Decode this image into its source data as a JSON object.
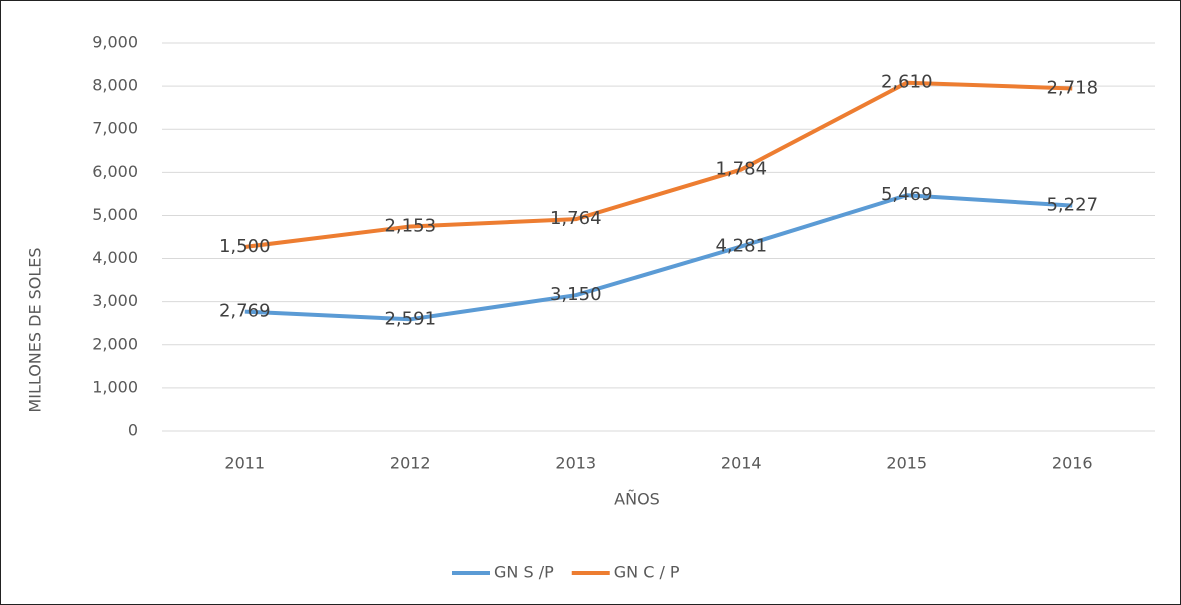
{
  "chart_data": {
    "type": "line",
    "stacked": true,
    "x_label": "AÑOS",
    "y_label": "MILLONES DE SOLES",
    "categories": [
      "2011",
      "2012",
      "2013",
      "2014",
      "2015",
      "2016"
    ],
    "series": [
      {
        "name": "GN S /P",
        "color": "#5b9bd5",
        "values": [
          2769,
          2591,
          3150,
          4281,
          5469,
          5227
        ],
        "value_labels": [
          "2,769",
          "2,591",
          "3,150",
          "4,281",
          "5,469",
          "5,227"
        ]
      },
      {
        "name": "GN C / P",
        "color": "#ed7d31",
        "values": [
          1500,
          2153,
          1764,
          1784,
          2610,
          2718
        ],
        "value_labels": [
          "1,500",
          "2,153",
          "1,764",
          "1,784",
          "2,610",
          "2,718"
        ]
      }
    ],
    "ylim": [
      0,
      9000
    ],
    "yticks": [
      0,
      {
        "value": 1000,
        "label": "1,000"
      },
      {
        "value": 2000,
        "label": "2,000"
      },
      {
        "value": 3000,
        "label": "3,000"
      },
      {
        "value": 4000,
        "label": "4,000"
      },
      {
        "value": 5000,
        "label": "5,000"
      },
      {
        "value": 6000,
        "label": "6,000"
      },
      {
        "value": 7000,
        "label": "7,000"
      },
      {
        "value": 8000,
        "label": "8,000"
      },
      {
        "value": 9000,
        "label": "9,000"
      }
    ],
    "grid": true,
    "legend": "bottom"
  }
}
